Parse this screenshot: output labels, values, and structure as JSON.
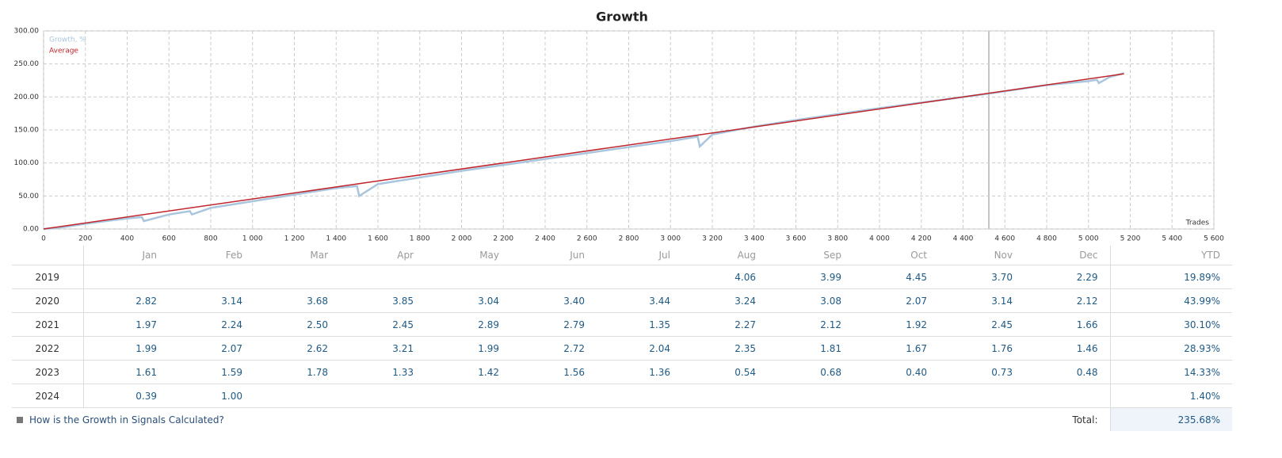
{
  "chart_data": {
    "type": "line",
    "title": "Growth",
    "x_label": "Trades",
    "xlim": [
      0,
      5600
    ],
    "xticks": [
      0,
      200,
      400,
      600,
      800,
      {
        "value": 1000,
        "label": "1 000"
      },
      {
        "value": 1200,
        "label": "1 200"
      },
      {
        "value": 1400,
        "label": "1 400"
      },
      {
        "value": 1600,
        "label": "1 600"
      },
      {
        "value": 1800,
        "label": "1 800"
      },
      {
        "value": 2000,
        "label": "2 000"
      },
      {
        "value": 2200,
        "label": "2 200"
      },
      {
        "value": 2400,
        "label": "2 400"
      },
      {
        "value": 2600,
        "label": "2 600"
      },
      {
        "value": 2800,
        "label": "2 800"
      },
      {
        "value": 3000,
        "label": "3 000"
      },
      {
        "value": 3200,
        "label": "3 200"
      },
      {
        "value": 3400,
        "label": "3 400"
      },
      {
        "value": 3600,
        "label": "3 600"
      },
      {
        "value": 3800,
        "label": "3 800"
      },
      {
        "value": 4000,
        "label": "4 000"
      },
      {
        "value": 4200,
        "label": "4 200"
      },
      {
        "value": 4400,
        "label": "4 400"
      },
      {
        "value": 4600,
        "label": "4 600"
      },
      {
        "value": 4800,
        "label": "4 800"
      },
      {
        "value": 5000,
        "label": "5 000"
      },
      {
        "value": 5200,
        "label": "5 200"
      },
      {
        "value": 5400,
        "label": "5 400"
      },
      {
        "value": 5600,
        "label": "5 600"
      }
    ],
    "ylim": [
      0,
      300
    ],
    "yticks": [
      {
        "value": 0,
        "label": "0.00"
      },
      {
        "value": 50,
        "label": "50.00"
      },
      {
        "value": 100,
        "label": "100.00"
      },
      {
        "value": 150,
        "label": "150.00"
      },
      {
        "value": 200,
        "label": "200.00"
      },
      {
        "value": 250,
        "label": "250.00"
      },
      {
        "value": 300,
        "label": "300.00"
      }
    ],
    "grid": true,
    "series": [
      {
        "name": "Growth, %",
        "color": "#a9c6de",
        "x": [
          0,
          100,
          200,
          400,
          470,
          480,
          600,
          700,
          710,
          800,
          1000,
          1200,
          1400,
          1500,
          1510,
          1600,
          1800,
          2000,
          2400,
          2800,
          3000,
          3130,
          3140,
          3200,
          3400,
          3600,
          4000,
          4523,
          4800,
          5000,
          5040,
          5050,
          5100,
          5170
        ],
        "values": [
          0,
          3,
          8,
          16,
          18,
          12,
          22,
          27,
          22,
          32,
          42,
          52,
          62,
          65,
          50,
          68,
          78,
          88,
          106,
          124,
          133,
          140,
          125,
          143,
          155,
          165,
          183,
          205,
          218,
          224,
          226,
          221,
          230,
          236
        ]
      },
      {
        "name": "Average",
        "color": "#c0262c",
        "x": [
          0,
          5170
        ],
        "values": [
          0,
          235
        ]
      }
    ]
  },
  "table": {
    "header": [
      "Jan",
      "Feb",
      "Mar",
      "Apr",
      "May",
      "Jun",
      "Jul",
      "Aug",
      "Sep",
      "Oct",
      "Nov",
      "Dec",
      "YTD"
    ],
    "rows": [
      [
        "2019",
        null,
        null,
        null,
        null,
        null,
        null,
        null,
        "4.06",
        "3.99",
        "4.45",
        "3.70",
        "2.29",
        "19.89%"
      ],
      [
        "2020",
        "2.82",
        "3.14",
        "3.68",
        "3.85",
        "3.04",
        "3.40",
        "3.44",
        "3.24",
        "3.08",
        "2.07",
        "3.14",
        "2.12",
        "43.99%"
      ],
      [
        "2021",
        "1.97",
        "2.24",
        "2.50",
        "2.45",
        "2.89",
        "2.79",
        "1.35",
        "2.27",
        "2.12",
        "1.92",
        "2.45",
        "1.66",
        "30.10%"
      ],
      [
        "2022",
        "1.99",
        "2.07",
        "2.62",
        "3.21",
        "1.99",
        "2.72",
        "2.04",
        "2.35",
        "1.81",
        "1.67",
        "1.76",
        "1.46",
        "28.93%"
      ],
      [
        "2023",
        "1.61",
        "1.59",
        "1.78",
        "1.33",
        "1.42",
        "1.56",
        "1.36",
        "0.54",
        "0.68",
        "0.40",
        "0.73",
        "0.48",
        "14.33%"
      ],
      [
        "2024",
        "0.39",
        "1.00",
        null,
        null,
        null,
        null,
        null,
        null,
        null,
        null,
        null,
        null,
        "1.40%"
      ]
    ],
    "footer": {
      "link": "How is the Growth in Signals Calculated?",
      "total_label": "Total:",
      "total": "235.68%"
    }
  }
}
